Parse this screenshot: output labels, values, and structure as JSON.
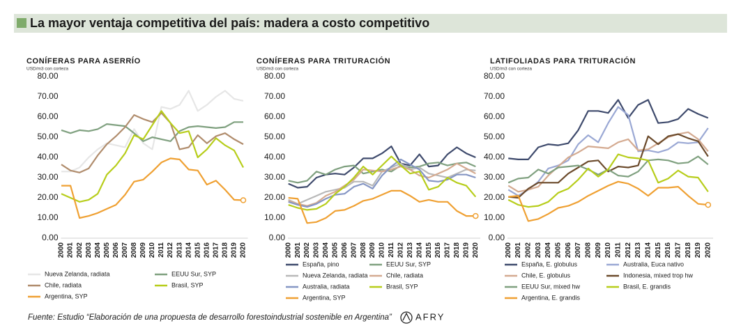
{
  "header": {
    "title": "La mayor ventaja competitiva del país: madera a costo competitivo"
  },
  "footer": {
    "source": "Fuente: Estudio “Elaboración de una propuesta de desarrollo forestoindustrial sostenible en Argentina”",
    "logo": "AFRY"
  },
  "chart_data": [
    {
      "type": "line",
      "title": "CONÍFERAS PARA ASERRÍO",
      "y_label": "USD/m3 con corteza",
      "categories": [
        "2000",
        "2001",
        "2002",
        "2003",
        "2004",
        "2005",
        "2006",
        "2007",
        "2008",
        "2009",
        "2010",
        "2011",
        "2012",
        "2013",
        "2014",
        "2015",
        "2016",
        "2017",
        "2018",
        "2019",
        "2020"
      ],
      "ylim": [
        0,
        80
      ],
      "yticks": [
        {
          "value": 0,
          "label": "0.00"
        },
        {
          "value": 10,
          "label": "10.00"
        },
        {
          "value": 20,
          "label": "20.00"
        },
        {
          "value": 30,
          "label": "30.00"
        },
        {
          "value": 40,
          "label": "40.00"
        },
        {
          "value": 50,
          "label": "50.00"
        },
        {
          "value": 60,
          "label": "60.00"
        },
        {
          "value": 70,
          "label": "70.00"
        },
        {
          "value": 80,
          "label": "80.00"
        }
      ],
      "grid": false,
      "series": [
        {
          "name": "Nueva Zelanda, radiata",
          "color": "#e6e6e6",
          "values": [
            33,
            33,
            35,
            40,
            44,
            47,
            46,
            45,
            54,
            47,
            44,
            65,
            64,
            66,
            73,
            63,
            66,
            70,
            73,
            69,
            68
          ]
        },
        {
          "name": "EEUU Sur, SYP",
          "color": "#7fa07f",
          "values": [
            53.5,
            52,
            53.5,
            53,
            54,
            56.5,
            56,
            55.5,
            52,
            48,
            50,
            49,
            48,
            53,
            55,
            55.5,
            55,
            54.5,
            55,
            57.5,
            57.5
          ]
        },
        {
          "name": "Chile, radiata",
          "color": "#b08c6c",
          "values": [
            36.5,
            33.5,
            32.5,
            34.5,
            41,
            46.5,
            50.5,
            55,
            61,
            59,
            57.5,
            62,
            57,
            44,
            45,
            51,
            47,
            50.5,
            52,
            49,
            46.5
          ]
        },
        {
          "name": "Brasil, SYP",
          "color": "#b7cd1a",
          "values": [
            22,
            20,
            18,
            19,
            22,
            31.5,
            36,
            42,
            51,
            49,
            56,
            63,
            57,
            52,
            53,
            40,
            44,
            49.5,
            46,
            43.5,
            35
          ]
        },
        {
          "name": "Argentina, SYP",
          "color": "#efa032",
          "end_marker": true,
          "values": [
            26,
            26,
            10,
            11,
            12.5,
            14.5,
            16.5,
            21.5,
            28,
            29,
            33,
            37.5,
            39.5,
            39,
            34,
            33.5,
            26.5,
            28.5,
            24,
            19,
            18.8
          ]
        }
      ]
    },
    {
      "type": "line",
      "title": "CONÍFERAS PARA TRITURACIÓN",
      "y_label": "USD/m3 con corteza",
      "categories": [
        "2000",
        "2001",
        "2002",
        "2003",
        "2004",
        "2005",
        "2006",
        "2007",
        "2008",
        "2009",
        "2010",
        "2011",
        "2012",
        "2013",
        "2014",
        "2015",
        "2016",
        "2017",
        "2018",
        "2019",
        "2020"
      ],
      "ylim": [
        0,
        80
      ],
      "yticks": [
        {
          "value": 0,
          "label": "0.00"
        },
        {
          "value": 10,
          "label": "10.00"
        },
        {
          "value": 20,
          "label": "20.00"
        },
        {
          "value": 30,
          "label": "30.00"
        },
        {
          "value": 40,
          "label": "40.00"
        },
        {
          "value": 50,
          "label": "50.00"
        },
        {
          "value": 60,
          "label": "60.00"
        },
        {
          "value": 70,
          "label": "70.00"
        },
        {
          "value": 80,
          "label": "80.00"
        }
      ],
      "grid": false,
      "series": [
        {
          "name": "España, pino",
          "color": "#3e4a6c",
          "values": [
            27,
            25,
            25.5,
            30,
            31.5,
            32,
            31.5,
            35,
            39.5,
            39.5,
            42,
            45.5,
            37,
            36,
            41.5,
            35.5,
            36,
            41.5,
            45,
            42,
            40
          ]
        },
        {
          "name": "EEUU Sur, SYP",
          "color": "#7fa07f",
          "values": [
            28.5,
            27.5,
            28.5,
            33,
            31.5,
            34,
            35.5,
            36,
            32,
            33,
            34,
            33,
            36,
            35,
            35.5,
            37,
            37.5,
            36,
            37,
            37.5,
            35.5
          ]
        },
        {
          "name": "Nueva Zelanda, radiata",
          "color": "#b8b8b8",
          "values": [
            19,
            17,
            19,
            21,
            23,
            24,
            25,
            28,
            28,
            26,
            33,
            35,
            37,
            34,
            35,
            32,
            31,
            30,
            32,
            34,
            33.5
          ]
        },
        {
          "name": "Chile, radiata",
          "color": "#d4aa90",
          "values": [
            18.5,
            17,
            16,
            17.5,
            21,
            23,
            26,
            29,
            34,
            33.5,
            33,
            34,
            35.5,
            34,
            31,
            30,
            32,
            34,
            37,
            34.5,
            32
          ]
        },
        {
          "name": "Australia, radiata",
          "color": "#8596c4",
          "values": [
            18,
            16.5,
            15.5,
            17,
            19.5,
            21.5,
            22,
            25.5,
            27,
            24.5,
            31,
            35.5,
            39,
            36.5,
            34,
            28.5,
            28,
            29,
            31.5,
            31.5,
            30
          ]
        },
        {
          "name": "Brasil, SYP",
          "color": "#b7cd1a",
          "values": [
            16.5,
            15,
            14,
            14.5,
            17,
            22,
            25.5,
            30,
            35.5,
            31.5,
            36,
            40.5,
            36,
            32,
            33,
            24,
            25.5,
            30,
            27.5,
            26,
            20.5
          ]
        },
        {
          "name": "Argentina, SYP",
          "color": "#efa032",
          "end_marker": true,
          "values": [
            20,
            19.5,
            7.5,
            8,
            10,
            13.5,
            14,
            16,
            18.5,
            19.5,
            21.5,
            23.5,
            23.5,
            21,
            18,
            19,
            18,
            18,
            13.5,
            11,
            11
          ]
        }
      ]
    },
    {
      "type": "line",
      "title": "LATIFOLIADAS PARA TRITURACIÓN",
      "y_label": "USD/m3 con corteza",
      "categories": [
        "2000",
        "2001",
        "2002",
        "2003",
        "2004",
        "2005",
        "2006",
        "2007",
        "2008",
        "2009",
        "2010",
        "2011",
        "2012",
        "2013",
        "2014",
        "2015",
        "2016",
        "2017",
        "2018",
        "2019",
        "2020"
      ],
      "ylim": [
        0,
        80
      ],
      "yticks": [
        {
          "value": 0,
          "label": "0.00"
        },
        {
          "value": 10,
          "label": "10.00"
        },
        {
          "value": 20,
          "label": "20.00"
        },
        {
          "value": 30,
          "label": "30.00"
        },
        {
          "value": 40,
          "label": "40.00"
        },
        {
          "value": 50,
          "label": "50.00"
        },
        {
          "value": 60,
          "label": "60.00"
        },
        {
          "value": 70,
          "label": "70.00"
        },
        {
          "value": 80,
          "label": "80.00"
        }
      ],
      "grid": false,
      "series": [
        {
          "name": "España, E. globulus",
          "color": "#3e4a6c",
          "values": [
            39.5,
            39,
            39,
            45,
            46.5,
            46,
            47,
            53.5,
            63,
            63,
            62,
            68.5,
            59.5,
            66,
            68.5,
            57,
            57.5,
            59,
            64,
            61.5,
            59.5
          ]
        },
        {
          "name": "Australia, Euca nativo",
          "color": "#9aa8d4",
          "values": [
            24,
            21,
            24,
            28,
            34.5,
            36,
            38.5,
            46.5,
            51,
            47.5,
            57,
            65,
            61,
            43,
            43.5,
            42.5,
            44,
            47.5,
            47,
            47.5,
            54.5
          ]
        },
        {
          "name": "Chile, E. globulus",
          "color": "#d4aa90",
          "values": [
            26,
            23,
            24,
            25.5,
            31,
            35.5,
            40,
            42.5,
            45.5,
            45,
            44.5,
            47.5,
            49,
            43.5,
            44,
            47,
            50,
            51.5,
            52.5,
            49,
            43
          ]
        },
        {
          "name": "Indonesia, mixed trop hw",
          "color": "#6b4a2b",
          "values": [
            20.5,
            20,
            24.5,
            27.5,
            27.5,
            27.5,
            32,
            35,
            38,
            38.5,
            33,
            35.5,
            35,
            36,
            50.5,
            46.5,
            50.5,
            51.5,
            49.5,
            48,
            40.5
          ]
        },
        {
          "name": "EEUU Sur, mixed hw",
          "color": "#7fa07f",
          "values": [
            27.5,
            29.5,
            30,
            34,
            32,
            35,
            35.5,
            36,
            34,
            31.5,
            34,
            31,
            30.5,
            33,
            38.5,
            39,
            38.5,
            37,
            37.5,
            40.5,
            36.5
          ]
        },
        {
          "name": "Brasil, E. grandis",
          "color": "#b7cd1a",
          "values": [
            19,
            16.5,
            15.5,
            16,
            18,
            22.5,
            24.5,
            29,
            34.5,
            30.5,
            34,
            41.5,
            40,
            39.5,
            38.5,
            27.5,
            29.5,
            33.5,
            30.5,
            30,
            23
          ]
        },
        {
          "name": "Argentina, E. grandis",
          "color": "#efa032",
          "end_marker": true,
          "values": [
            20.5,
            21,
            8.5,
            9.5,
            12,
            15,
            16,
            18,
            21,
            23.5,
            26,
            28,
            27,
            24.5,
            21,
            25,
            25,
            25.5,
            21,
            17,
            16.5
          ]
        }
      ]
    }
  ]
}
